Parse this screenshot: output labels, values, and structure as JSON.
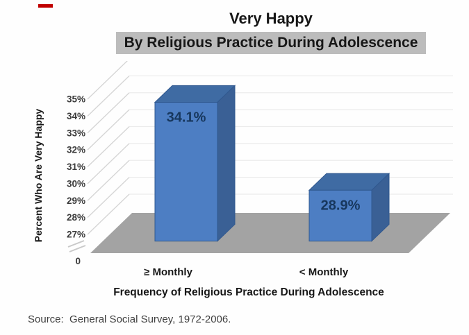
{
  "page": {
    "title": "Very Happy",
    "subtitle": "By Religious Practice During Adolescence",
    "source": "Source:  General Social Survey, 1972-2006."
  },
  "chart_data": {
    "type": "bar",
    "style": "3d",
    "title": "Very Happy",
    "subtitle": "By Religious Practice During Adolescence",
    "categories": [
      "≥ Monthly",
      "< Monthly"
    ],
    "values": [
      34.1,
      28.9
    ],
    "value_labels": [
      "34.1%",
      "28.9%"
    ],
    "xlabel": "Frequency of Religious Practice During Adolescence",
    "ylabel": "Percent Who Are Very Happy",
    "y_ticks": [
      "35%",
      "34%",
      "33%",
      "32%",
      "31%",
      "30%",
      "29%",
      "28%",
      "27%"
    ],
    "y_tick_values": [
      35,
      34,
      33,
      32,
      31,
      30,
      29,
      28,
      27
    ],
    "zero_label": "0",
    "axis_break": true,
    "ylim_display": [
      27,
      35
    ],
    "grid": true,
    "legend": false,
    "colors": {
      "bar_front": "#4d7ec3",
      "bar_top": "#3f6ba3",
      "bar_side": "#3a6095",
      "bar_edge": "#30588f",
      "value_label": "#17375d",
      "floor": "#a3a3a3",
      "gridline_side": "#d6d6d6",
      "gridline_back": "#ebebeb",
      "tick_text": "#3c3c3c",
      "axis_text": "#171717",
      "subtitle_bg": "#bcbcbc",
      "red_mark": "#c00000"
    }
  }
}
